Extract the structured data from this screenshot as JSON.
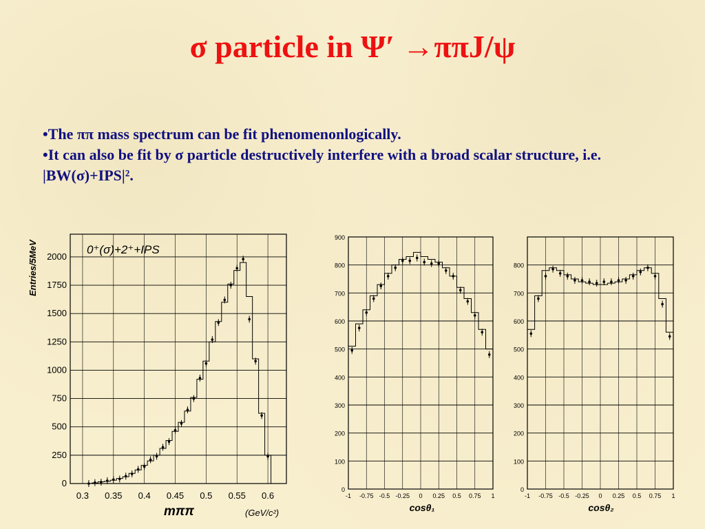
{
  "slide": {
    "title": "σ particle in Ψ′ →ππJ/ψ",
    "bullets": [
      "•The ππ mass spectrum can be fit phenomenonlogically.",
      "•It can also be fit by σ particle destructively interfere with a broad scalar structure,   i.e.  |BW(σ)+IPS|²."
    ]
  },
  "chart_data": [
    {
      "type": "histogram",
      "annotation": "0⁺(σ)+2⁺+IPS",
      "xlabel": "mππ",
      "xunit": "(GeV/c²)",
      "ylabel": "Entries/5MeV",
      "xlim": [
        0.28,
        0.63
      ],
      "ylim": [
        0,
        2200
      ],
      "xticks": [
        0.3,
        0.35,
        0.4,
        0.45,
        0.5,
        0.55,
        0.6
      ],
      "xtick_labels": [
        "0.3",
        "0.35",
        "0.4",
        "0.45",
        "0.5",
        "0.55",
        "0.6"
      ],
      "yticks": [
        0,
        250,
        500,
        750,
        1000,
        1250,
        1500,
        1750,
        2000
      ],
      "ytick_labels": [
        "0",
        "250",
        "500",
        "750",
        "1000",
        "1250",
        "1500",
        "1750",
        "2000"
      ],
      "grid": true,
      "series": [
        {
          "role": "fit",
          "x": [
            0.31,
            0.32,
            0.33,
            0.34,
            0.35,
            0.36,
            0.37,
            0.38,
            0.39,
            0.4,
            0.41,
            0.42,
            0.43,
            0.44,
            0.45,
            0.46,
            0.47,
            0.48,
            0.49,
            0.5,
            0.51,
            0.52,
            0.53,
            0.54,
            0.55,
            0.56,
            0.57,
            0.58,
            0.59,
            0.6
          ],
          "y": [
            0,
            5,
            15,
            20,
            30,
            45,
            60,
            90,
            120,
            160,
            200,
            250,
            310,
            380,
            460,
            540,
            640,
            760,
            920,
            1080,
            1250,
            1430,
            1600,
            1760,
            1880,
            1950,
            1650,
            1100,
            620,
            250
          ]
        },
        {
          "role": "data",
          "x": [
            0.31,
            0.32,
            0.33,
            0.34,
            0.35,
            0.36,
            0.37,
            0.38,
            0.39,
            0.4,
            0.41,
            0.42,
            0.43,
            0.44,
            0.45,
            0.46,
            0.47,
            0.48,
            0.49,
            0.5,
            0.51,
            0.52,
            0.53,
            0.54,
            0.55,
            0.56,
            0.57,
            0.58,
            0.59,
            0.6
          ],
          "y": [
            0,
            8,
            12,
            25,
            35,
            40,
            65,
            85,
            125,
            150,
            210,
            240,
            320,
            370,
            470,
            530,
            650,
            750,
            930,
            1060,
            1270,
            1420,
            1620,
            1750,
            1900,
            1980,
            1450,
            1080,
            600,
            240
          ]
        }
      ]
    },
    {
      "type": "histogram",
      "xlabel": "cosθ₁",
      "xlim": [
        -1,
        1
      ],
      "ylim": [
        0,
        900
      ],
      "xticks": [
        -1,
        -0.75,
        -0.5,
        -0.25,
        0,
        0.25,
        0.5,
        0.75,
        1
      ],
      "xtick_labels": [
        "-1",
        "-0.75",
        "-0.5",
        "-0.25",
        "0",
        "0.25",
        "0.5",
        "0.75",
        "1"
      ],
      "yticks": [
        0,
        100,
        200,
        300,
        400,
        500,
        600,
        700,
        800,
        900
      ],
      "ytick_labels": [
        "0",
        "100",
        "200",
        "300",
        "400",
        "500",
        "600",
        "700",
        "800",
        "900"
      ],
      "grid": true,
      "series": [
        {
          "role": "fit",
          "x": [
            -0.95,
            -0.85,
            -0.75,
            -0.65,
            -0.55,
            -0.45,
            -0.35,
            -0.25,
            -0.15,
            -0.05,
            0.05,
            0.15,
            0.25,
            0.35,
            0.45,
            0.55,
            0.65,
            0.75,
            0.85,
            0.95
          ],
          "y": [
            510,
            590,
            640,
            690,
            730,
            770,
            800,
            820,
            830,
            845,
            830,
            820,
            810,
            790,
            760,
            720,
            680,
            630,
            570,
            500
          ]
        },
        {
          "role": "data",
          "x": [
            -0.95,
            -0.85,
            -0.75,
            -0.65,
            -0.55,
            -0.45,
            -0.35,
            -0.25,
            -0.15,
            -0.05,
            0.05,
            0.15,
            0.25,
            0.35,
            0.45,
            0.55,
            0.65,
            0.75,
            0.85,
            0.95
          ],
          "y": [
            495,
            575,
            630,
            680,
            725,
            760,
            790,
            815,
            815,
            825,
            810,
            805,
            805,
            780,
            760,
            710,
            670,
            620,
            560,
            480
          ]
        }
      ]
    },
    {
      "type": "histogram",
      "xlabel": "cosθ₂",
      "xlim": [
        -1,
        1
      ],
      "ylim": [
        0,
        900
      ],
      "xticks": [
        -1,
        -0.75,
        -0.5,
        -0.25,
        0,
        0.25,
        0.5,
        0.75,
        1
      ],
      "xtick_labels": [
        "-1",
        "-0.75",
        "-0.5",
        "-0.25",
        "0",
        "0.25",
        "0.5",
        "0.75",
        "1"
      ],
      "yticks": [
        0,
        100,
        200,
        300,
        400,
        500,
        600,
        700,
        800
      ],
      "ytick_labels": [
        "0",
        "100",
        "200",
        "300",
        "400",
        "500",
        "600",
        "700",
        "800"
      ],
      "grid": true,
      "series": [
        {
          "role": "fit",
          "x": [
            -0.95,
            -0.85,
            -0.75,
            -0.65,
            -0.55,
            -0.45,
            -0.35,
            -0.25,
            -0.15,
            -0.05,
            0.05,
            0.15,
            0.25,
            0.35,
            0.45,
            0.55,
            0.65,
            0.75,
            0.85,
            0.95
          ],
          "y": [
            570,
            690,
            780,
            790,
            780,
            765,
            750,
            740,
            735,
            730,
            730,
            735,
            740,
            750,
            765,
            780,
            790,
            770,
            680,
            560
          ]
        },
        {
          "role": "data",
          "x": [
            -0.95,
            -0.85,
            -0.75,
            -0.65,
            -0.55,
            -0.45,
            -0.35,
            -0.25,
            -0.15,
            -0.05,
            0.05,
            0.15,
            0.25,
            0.35,
            0.45,
            0.55,
            0.65,
            0.75,
            0.85,
            0.95
          ],
          "y": [
            555,
            680,
            760,
            785,
            770,
            760,
            745,
            745,
            740,
            735,
            740,
            740,
            745,
            745,
            760,
            775,
            790,
            760,
            660,
            545
          ]
        }
      ]
    }
  ]
}
